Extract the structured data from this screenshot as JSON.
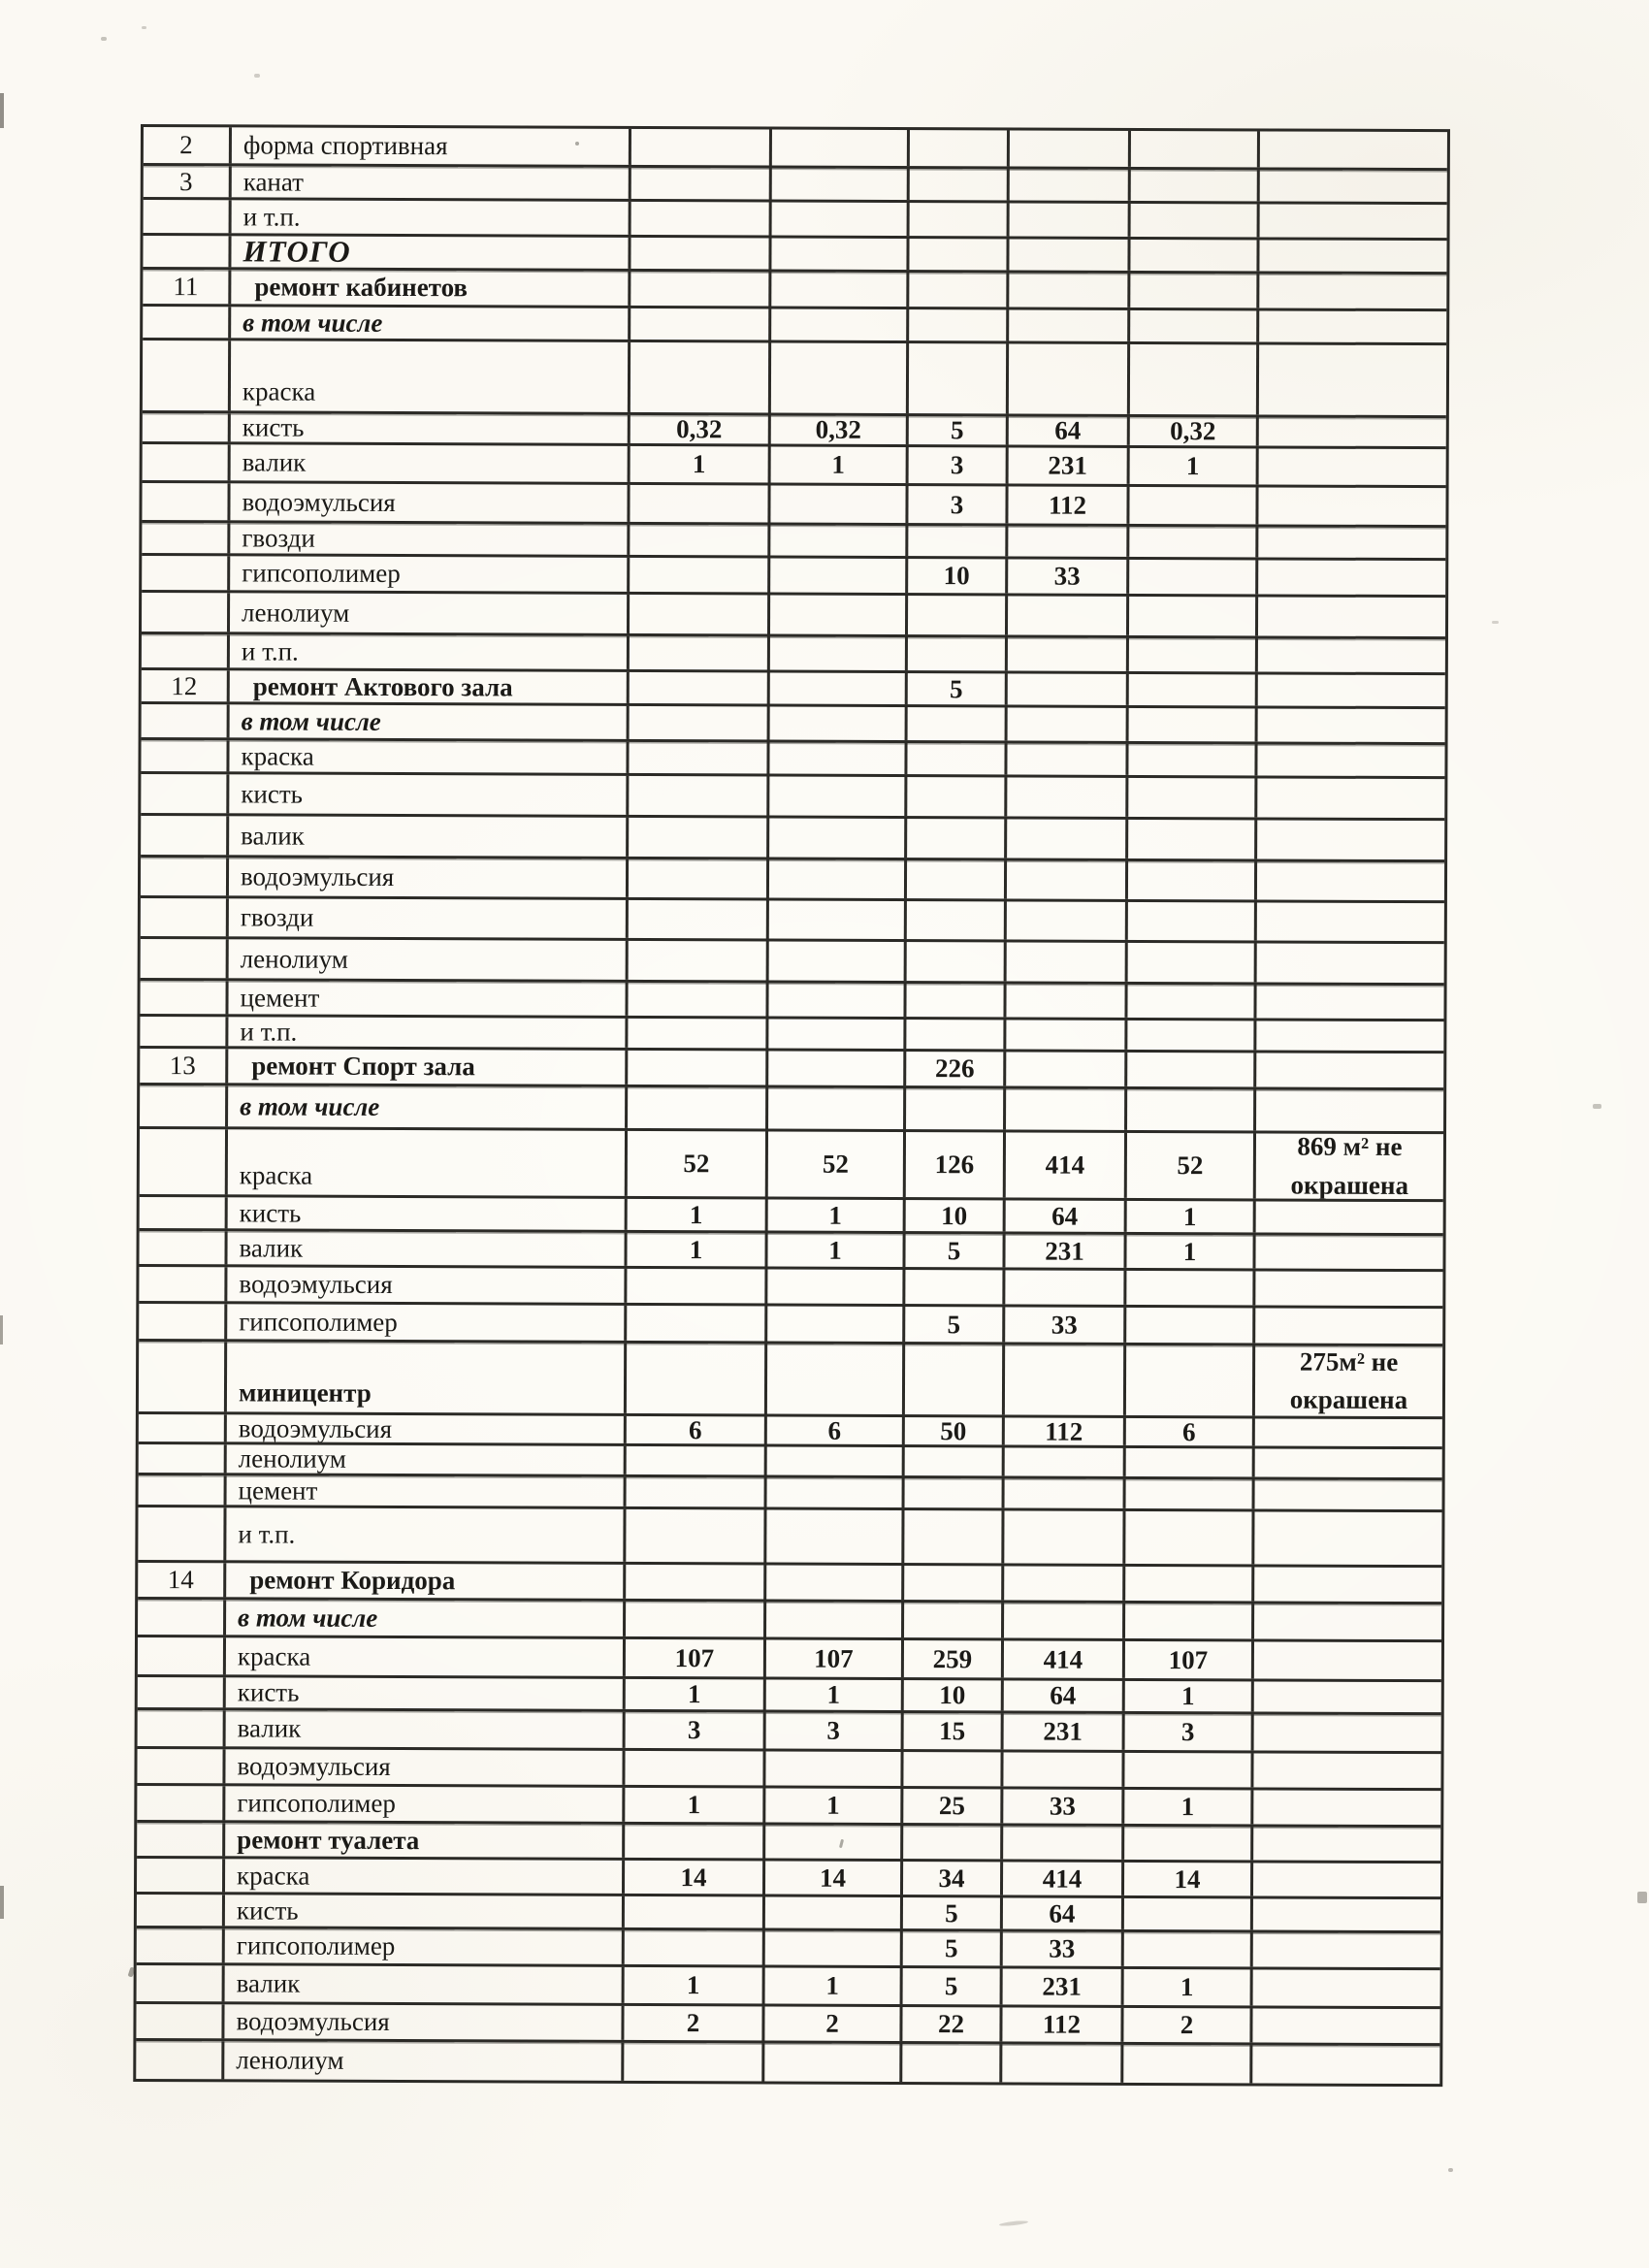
{
  "document": {
    "kind": "scanned repair-materials table (continuation page, no header row)",
    "language": "ru"
  },
  "colors": {
    "paper": "#fbf9f3",
    "ink": "#1b1a17",
    "grid_line": "#2b2a26"
  },
  "table": {
    "rows": [
      {
        "num": "2",
        "name": "форма спортивная",
        "type": "item",
        "h": 37
      },
      {
        "num": "3",
        "name": "канат",
        "type": "item",
        "h": 35
      },
      {
        "name": "и т.п.",
        "type": "item",
        "h": 37
      },
      {
        "name": "ИТОГО",
        "type": "total",
        "h": 35
      },
      {
        "num": "11",
        "name": "ремонт кабинетов",
        "type": "section",
        "h": 38
      },
      {
        "name": "в том числе",
        "type": "subhead",
        "h": 35
      },
      {
        "name": "краска",
        "type": "item",
        "h": 75,
        "tall": true
      },
      {
        "name": "кисть",
        "type": "item",
        "c1": "0,32",
        "c2": "0,32",
        "c3": "5",
        "c4": "64",
        "c5": "0,32",
        "h": 32
      },
      {
        "name": "валик",
        "type": "item",
        "c1": "1",
        "c2": "1",
        "c3": "3",
        "c4": "231",
        "c5": "1",
        "h": 40
      },
      {
        "name": "водоэмульсия",
        "type": "item",
        "c3": "3",
        "c4": "112",
        "h": 41
      },
      {
        "name": "гвозди",
        "type": "item",
        "h": 34
      },
      {
        "name": "гипсополимер",
        "type": "item",
        "c3": "10",
        "c4": "33",
        "h": 38
      },
      {
        "name": "ленолиум",
        "type": "item",
        "h": 43
      },
      {
        "name": "и т.п.",
        "type": "item",
        "h": 37
      },
      {
        "num": "12",
        "name": "ремонт Актового зала",
        "type": "section",
        "c3": "5",
        "h": 35
      },
      {
        "name": "в том числе",
        "type": "subhead",
        "h": 37
      },
      {
        "name": "краска",
        "type": "item",
        "h": 35
      },
      {
        "name": "кисть",
        "type": "item",
        "h": 43
      },
      {
        "name": "валик",
        "type": "item",
        "h": 43
      },
      {
        "name": "водоэмульсия",
        "type": "item",
        "h": 42
      },
      {
        "name": "гвозди",
        "type": "item",
        "h": 42
      },
      {
        "name": "ленолиум",
        "type": "item",
        "h": 43
      },
      {
        "name": "цемент",
        "type": "item",
        "h": 37
      },
      {
        "name": "и т.п.",
        "type": "item",
        "h": 33
      },
      {
        "num": "13",
        "name": "ремонт Спорт зала",
        "type": "section",
        "c3": "226",
        "h": 38
      },
      {
        "name": "в том числе",
        "type": "subhead",
        "h": 45
      },
      {
        "name": "краска",
        "type": "item",
        "c1": "52",
        "c2": "52",
        "c3": "126",
        "c4": "414",
        "c5": "52",
        "note": "869 м² не окрашена",
        "h": 70,
        "tall": true
      },
      {
        "name": "кисть",
        "type": "item",
        "c1": "1",
        "c2": "1",
        "c3": "10",
        "c4": "64",
        "c5": "1",
        "h": 35
      },
      {
        "name": "валик",
        "type": "item",
        "c1": "1",
        "c2": "1",
        "c3": "5",
        "c4": "231",
        "c5": "1",
        "h": 37
      },
      {
        "name": "водоэмульсия",
        "type": "item",
        "h": 38
      },
      {
        "name": "гипсополимер",
        "type": "item",
        "c3": "5",
        "c4": "33",
        "h": 39
      },
      {
        "name": "миницентр",
        "type": "section",
        "note": "275м² не окрашена",
        "h": 75,
        "tall": true
      },
      {
        "name": "водоэмульсия",
        "type": "item",
        "c1": "6",
        "c2": "6",
        "c3": "50",
        "c4": "112",
        "c5": "6",
        "h": 31
      },
      {
        "name": "ленолиум",
        "type": "item",
        "h": 32
      },
      {
        "name": "цемент",
        "type": "item",
        "h": 33
      },
      {
        "name": "и т.п.",
        "type": "item",
        "h": 57
      },
      {
        "num": "14",
        "name": "ремонт Коридора",
        "type": "section",
        "h": 38
      },
      {
        "name": "в том числе",
        "type": "subhead",
        "h": 39
      },
      {
        "name": "краска",
        "type": "item",
        "c1": "107",
        "c2": "107",
        "c3": "259",
        "c4": "414",
        "c5": "107",
        "h": 41
      },
      {
        "name": "кисть",
        "type": "item",
        "c1": "1",
        "c2": "1",
        "c3": "10",
        "c4": "64",
        "c5": "1",
        "h": 34
      },
      {
        "name": "валик",
        "type": "item",
        "c1": "3",
        "c2": "3",
        "c3": "15",
        "c4": "231",
        "c5": "3",
        "h": 40
      },
      {
        "name": "водоэмульсия",
        "type": "item",
        "h": 38
      },
      {
        "name": "гипсополимер",
        "type": "item",
        "c1": "1",
        "c2": "1",
        "c3": "25",
        "c4": "33",
        "c5": "1",
        "h": 38
      },
      {
        "name": "ремонт туалета",
        "type": "section",
        "h": 37
      },
      {
        "name": "краска",
        "type": "item",
        "c1": "14",
        "c2": "14",
        "c3": "34",
        "c4": "414",
        "c5": "14",
        "h": 37
      },
      {
        "name": "кисть",
        "type": "item",
        "c3": "5",
        "c4": "64",
        "h": 35
      },
      {
        "name": "гипсополимер",
        "type": "item",
        "c3": "5",
        "c4": "33",
        "h": 38
      },
      {
        "name": "валик",
        "type": "item",
        "c1": "1",
        "c2": "1",
        "c3": "5",
        "c4": "231",
        "c5": "1",
        "h": 40
      },
      {
        "name": "водоэмульсия",
        "type": "item",
        "c1": "2",
        "c2": "2",
        "c3": "22",
        "c4": "112",
        "c5": "2",
        "h": 38
      },
      {
        "name": "ленолиум",
        "type": "item",
        "h": 42
      }
    ]
  }
}
